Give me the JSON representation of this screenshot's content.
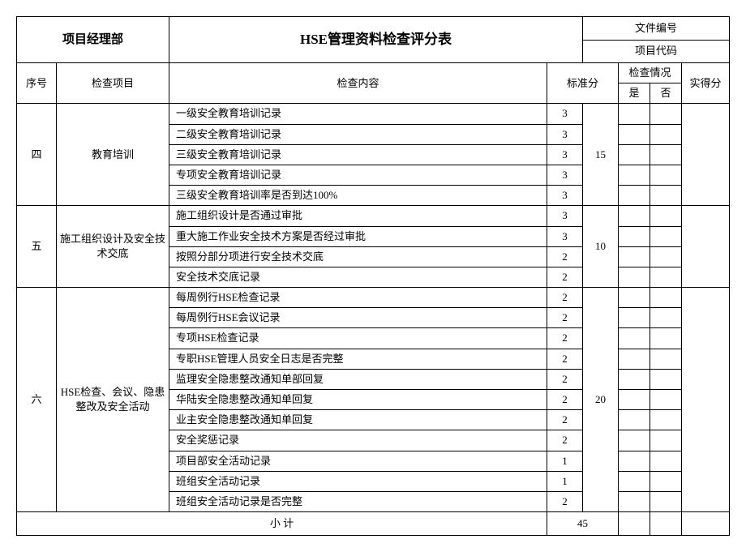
{
  "header": {
    "left": "项目经理部",
    "title": "HSE管理资料检查评分表",
    "doc_no_label": "文件编号",
    "proj_code_label": "项目代码"
  },
  "columns": {
    "seq": "序号",
    "item": "检查项目",
    "content": "检查内容",
    "std_score": "标准分",
    "check_status": "检查情况",
    "yes": "是",
    "no": "否",
    "actual_score": "实得分"
  },
  "sections": [
    {
      "seq": "四",
      "item": "教育培训",
      "subtotal": "15",
      "rows": [
        {
          "content": "一级安全教育培训记录",
          "score": "3"
        },
        {
          "content": "二级安全教育培训记录",
          "score": "3"
        },
        {
          "content": "三级安全教育培训记录",
          "score": "3"
        },
        {
          "content": "专项安全教育培训记录",
          "score": "3"
        },
        {
          "content": "三级安全教育培训率是否到达100%",
          "score": "3"
        }
      ]
    },
    {
      "seq": "五",
      "item": "施工组织设计及安全技术交底",
      "subtotal": "10",
      "rows": [
        {
          "content": "施工组织设计是否通过审批",
          "score": "3"
        },
        {
          "content": "重大施工作业安全技术方案是否经过审批",
          "score": "3"
        },
        {
          "content": "按照分部分项进行安全技术交底",
          "score": "2"
        },
        {
          "content": "安全技术交底记录",
          "score": "2"
        }
      ]
    },
    {
      "seq": "六",
      "item": "HSE检查、会议、隐患整改及安全活动",
      "subtotal": "20",
      "rows": [
        {
          "content": "每周例行HSE检查记录",
          "score": "2"
        },
        {
          "content": "每周例行HSE会议记录",
          "score": "2"
        },
        {
          "content": "专项HSE检查记录",
          "score": "2"
        },
        {
          "content": "专职HSE管理人员安全日志是否完整",
          "score": "2"
        },
        {
          "content": "监理安全隐患整改通知单部回复",
          "score": "2"
        },
        {
          "content": "华陆安全隐患整改通知单回复",
          "score": "2"
        },
        {
          "content": "业主安全隐患整改通知单回复",
          "score": "2"
        },
        {
          "content": "安全奖惩记录",
          "score": "2"
        },
        {
          "content": "项目部安全活动记录",
          "score": "1"
        },
        {
          "content": "班组安全活动记录",
          "score": "1"
        },
        {
          "content": "班组安全活动记录是否完整",
          "score": "2"
        }
      ]
    }
  ],
  "subtotal": {
    "label": "小  计",
    "value": "45"
  }
}
